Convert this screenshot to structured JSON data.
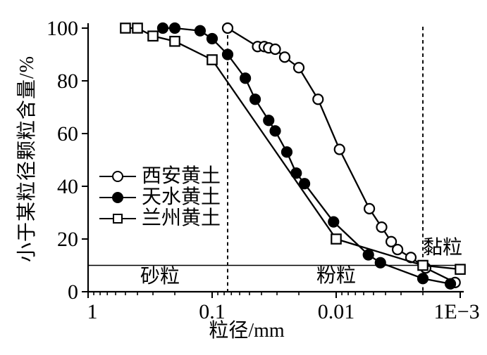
{
  "chart_data": {
    "type": "line",
    "title": "",
    "xlabel": "粒径/mm",
    "ylabel": "小于某粒径颗粒含量/%",
    "x_scale": "log-reversed",
    "x_range": [
      1,
      0.001
    ],
    "y_range": [
      0,
      100
    ],
    "grid": "off",
    "legend_position": "inside-left",
    "x_ticks": [
      {
        "value": 1,
        "label": "1"
      },
      {
        "value": 0.1,
        "label": "0.1"
      },
      {
        "value": 0.01,
        "label": "0.01"
      },
      {
        "value": 0.001,
        "label": "1E−3"
      }
    ],
    "y_ticks": [
      0,
      20,
      40,
      60,
      80,
      100
    ],
    "threshold_percent": 10,
    "boundary_lines_mm": [
      0.075,
      0.002
    ],
    "regions": [
      {
        "label": "砂粒",
        "range_mm": "1–0.075"
      },
      {
        "label": "粉粒",
        "range_mm": "0.075–0.002"
      },
      {
        "label": "黏粒",
        "range_mm": "<0.002"
      }
    ],
    "series": [
      {
        "name": "西安黄土",
        "marker": "open-circle",
        "points": [
          [
            0.075,
            100
          ],
          [
            0.043,
            93
          ],
          [
            0.038,
            93
          ],
          [
            0.035,
            92.5
          ],
          [
            0.031,
            92
          ],
          [
            0.026,
            89
          ],
          [
            0.02,
            85
          ],
          [
            0.014,
            73
          ],
          [
            0.0094,
            54
          ],
          [
            0.0054,
            31.5
          ],
          [
            0.0043,
            24.5
          ],
          [
            0.0036,
            19
          ],
          [
            0.0032,
            16
          ],
          [
            0.0025,
            13
          ],
          [
            0.0019,
            9
          ],
          [
            0.0011,
            3.5
          ]
        ]
      },
      {
        "name": "天水黄土",
        "marker": "filled-circle",
        "points": [
          [
            0.25,
            100
          ],
          [
            0.2,
            100
          ],
          [
            0.125,
            99
          ],
          [
            0.1,
            96
          ],
          [
            0.075,
            90
          ],
          [
            0.054,
            81
          ],
          [
            0.045,
            73
          ],
          [
            0.035,
            65
          ],
          [
            0.031,
            61
          ],
          [
            0.025,
            53
          ],
          [
            0.021,
            45
          ],
          [
            0.018,
            41
          ],
          [
            0.0105,
            26.5
          ],
          [
            0.0055,
            14
          ],
          [
            0.0044,
            11
          ],
          [
            0.002,
            5
          ],
          [
            0.0012,
            3
          ]
        ]
      },
      {
        "name": "兰州黄土",
        "marker": "open-square",
        "points": [
          [
            0.5,
            100
          ],
          [
            0.4,
            100
          ],
          [
            0.3,
            97
          ],
          [
            0.2,
            95
          ],
          [
            0.1,
            88
          ],
          [
            0.01,
            20
          ],
          [
            0.002,
            10
          ],
          [
            0.001,
            8.5
          ]
        ]
      }
    ]
  },
  "colors": {
    "foreground": "#000000",
    "background": "#ffffff"
  }
}
